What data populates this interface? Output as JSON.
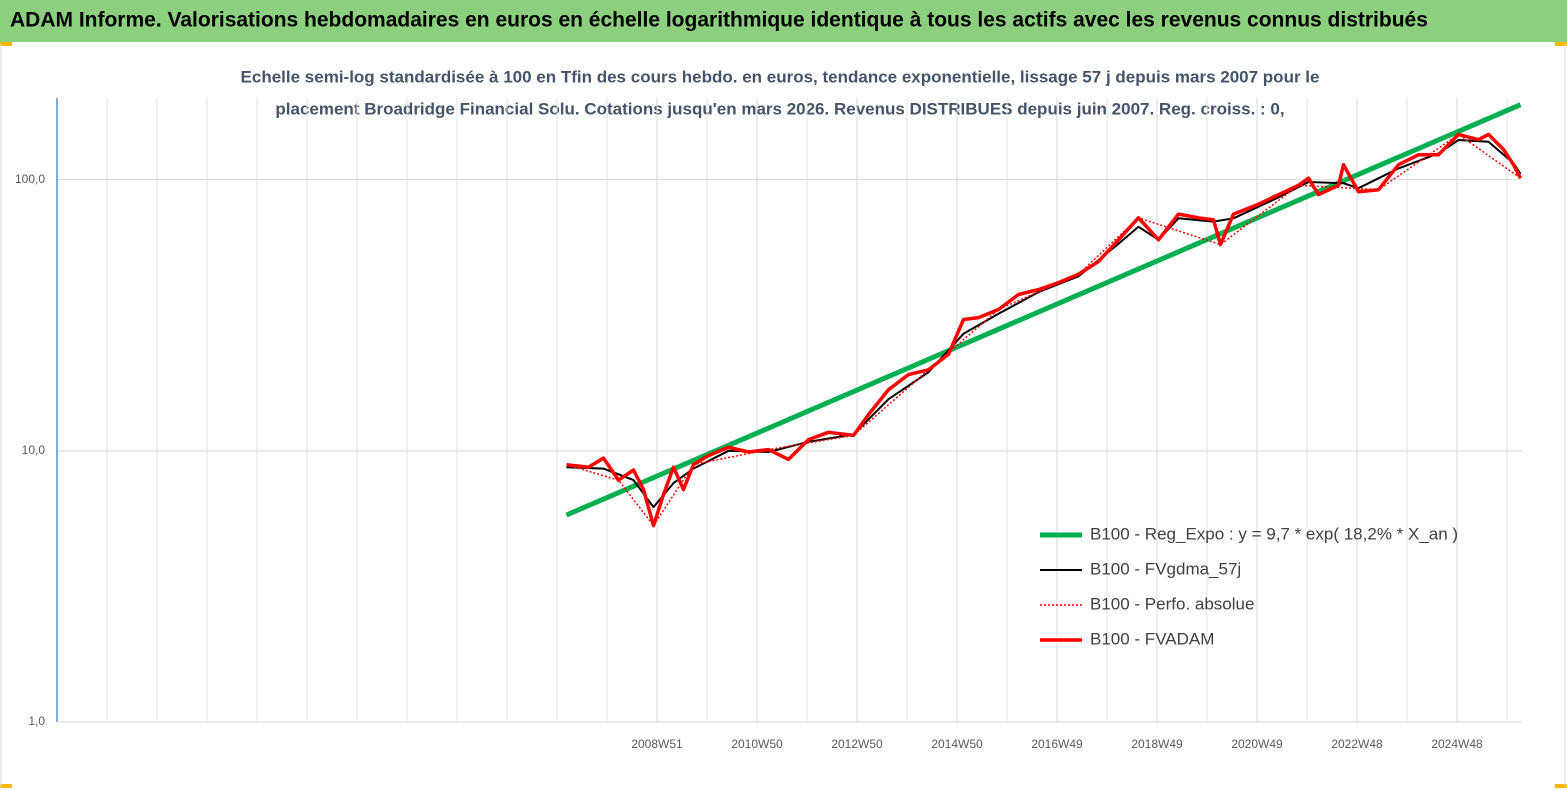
{
  "header": {
    "title": "ADAM Informe. Valorisations hebdomadaires en euros en échelle logarithmique identique à tous les actifs avec les revenus connus distribués"
  },
  "chart_data": {
    "type": "line",
    "title": [
      "Echelle semi-log standardisée à 100 en Tfin des cours hebdo. en euros, tendance exponentielle, lissage 57 j depuis mars 2007 pour le",
      "placement Broadridge Financial Solu. Cotations jusqu'en mars 2026. Revenus DISTRIBUES depuis juin 2007. Reg. croiss. : 0,"
    ],
    "log_scale": true,
    "grid": true,
    "legend": "right",
    "xlim": [
      1997,
      2026.3
    ],
    "xticks": [
      {
        "value": 2009,
        "label": "2008W51"
      },
      {
        "value": 2011,
        "label": "2010W50"
      },
      {
        "value": 2013,
        "label": "2012W50"
      },
      {
        "value": 2015,
        "label": "2014W50"
      },
      {
        "value": 2017,
        "label": "2016W49"
      },
      {
        "value": 2019,
        "label": "2018W49"
      },
      {
        "value": 2021,
        "label": "2020W49"
      },
      {
        "value": 2023,
        "label": "2022W48"
      },
      {
        "value": 2025,
        "label": "2024W48"
      }
    ],
    "ylim": [
      1,
      200
    ],
    "yticks": [
      {
        "value": 1,
        "label": "1,0"
      },
      {
        "value": 10,
        "label": "10,0"
      },
      {
        "value": 100,
        "label": "100,0"
      }
    ],
    "series": [
      {
        "name": "B100 - Reg_Expo : y = 9,7 * exp( 18,2% *  X_an )",
        "color": "#00b050",
        "width": 5,
        "dash": "solid",
        "x": [
          2007.19,
          2026.27
        ],
        "values": [
          5.8,
          189
        ]
      },
      {
        "name": "B100 - FVgdma_57j",
        "color": "#000000",
        "width": 2,
        "dash": "solid",
        "x": [
          2007.19,
          2007.93,
          2008.53,
          2008.93,
          2009.33,
          2009.73,
          2010.43,
          2011.23,
          2012.03,
          2012.93,
          2013.63,
          2014.43,
          2015.13,
          2015.83,
          2016.63,
          2017.43,
          2018.23,
          2018.63,
          2019.03,
          2019.43,
          2020.13,
          2020.53,
          2021.43,
          2022.03,
          2022.73,
          2023.03,
          2023.83,
          2024.63,
          2025.03,
          2025.63,
          2026.13,
          2026.27
        ],
        "values": [
          8.7,
          8.6,
          7.8,
          6.2,
          7.6,
          8.6,
          10.0,
          9.9,
          10.8,
          11.5,
          15.5,
          19.5,
          27,
          32,
          38.5,
          44,
          58,
          67,
          60,
          72,
          70,
          72,
          86,
          98,
          97,
          93,
          110,
          125,
          140,
          138,
          115,
          105
        ]
      },
      {
        "name": "B100 - Perfo. absolue",
        "color": "#ff0000",
        "width": 1.5,
        "dash": "dotted",
        "x": [
          2007.19,
          2008.23,
          2008.93,
          2009.73,
          2011.23,
          2012.93,
          2014.43,
          2015.83,
          2017.43,
          2018.63,
          2020.27,
          2021.83,
          2023.43,
          2025.03,
          2026.27
        ],
        "values": [
          8.88,
          7.8,
          5.3,
          8.9,
          10.1,
          11.4,
          19.9,
          33.2,
          44.8,
          72.3,
          57.6,
          95.3,
          91.8,
          146.8,
          101.2
        ]
      },
      {
        "name": "B100 - FVADAM",
        "color": "#ff0000",
        "width": 3.5,
        "dash": "solid",
        "x": [
          2007.19,
          2007.63,
          2007.93,
          2008.23,
          2008.53,
          2008.73,
          2008.93,
          2009.13,
          2009.33,
          2009.53,
          2009.73,
          2010.03,
          2010.43,
          2010.83,
          2011.23,
          2011.63,
          2012.03,
          2012.43,
          2012.93,
          2013.23,
          2013.63,
          2014.03,
          2014.43,
          2014.83,
          2015.13,
          2015.43,
          2015.83,
          2016.23,
          2016.63,
          2017.03,
          2017.43,
          2017.83,
          2018.23,
          2018.63,
          2019.03,
          2019.43,
          2019.83,
          2020.13,
          2020.27,
          2020.53,
          2021.03,
          2021.43,
          2021.83,
          2022.03,
          2022.23,
          2022.63,
          2022.73,
          2023.03,
          2023.43,
          2023.83,
          2024.23,
          2024.63,
          2025.03,
          2025.43,
          2025.63,
          2025.93,
          2026.13,
          2026.27
        ],
        "values": [
          8.88,
          8.7,
          9.4,
          7.8,
          8.5,
          7.2,
          5.3,
          6.9,
          8.7,
          7.2,
          8.9,
          9.6,
          10.3,
          9.9,
          10.1,
          9.3,
          11.0,
          11.7,
          11.4,
          13.6,
          16.8,
          19.1,
          19.9,
          22.7,
          30.5,
          31.0,
          33.2,
          37.7,
          39.3,
          41.7,
          44.8,
          49.9,
          60.0,
          72.3,
          60.0,
          74.6,
          72.3,
          71.1,
          57.6,
          74.6,
          81.2,
          88.0,
          95.3,
          101.2,
          88.0,
          95.3,
          113.5,
          90.3,
          91.8,
          113.5,
          123.5,
          123.5,
          146.8,
          140.4,
          146.8,
          129.2,
          113.5,
          101.2
        ]
      }
    ]
  }
}
